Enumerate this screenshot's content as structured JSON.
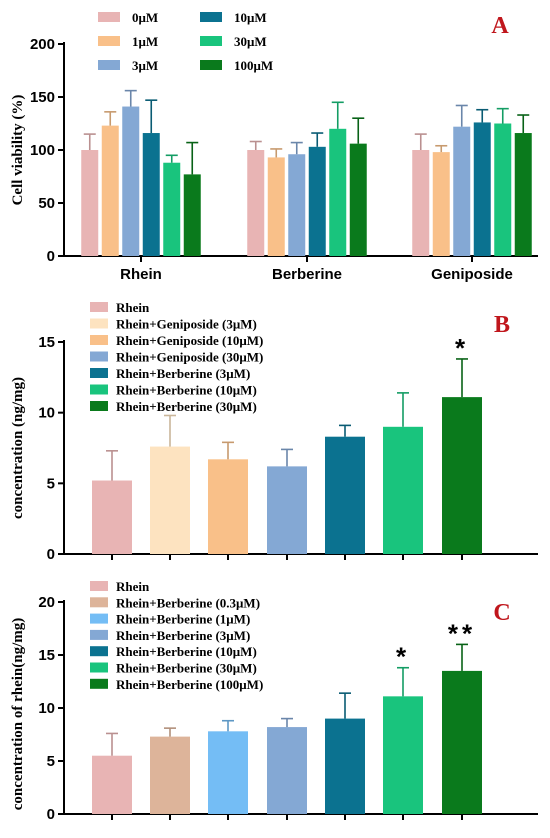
{
  "chart_data": [
    {
      "type": "bar",
      "panel_label": "A",
      "ylabel": "Cell viability (%)",
      "ylim": [
        0,
        200
      ],
      "yticks": [
        0,
        50,
        100,
        150,
        200
      ],
      "categories": [
        "Rhein",
        "Berberine",
        "Geniposide"
      ],
      "legend_position": "top-left",
      "series": [
        {
          "name": "0μM",
          "color": "#e8b4b4",
          "values": [
            100,
            100,
            100
          ],
          "errors": [
            15,
            8,
            15
          ]
        },
        {
          "name": "1μM",
          "color": "#f9c089",
          "values": [
            123,
            93,
            98
          ],
          "errors": [
            13,
            8,
            6
          ]
        },
        {
          "name": "3μM",
          "color": "#84a8d4",
          "values": [
            141,
            96,
            122
          ],
          "errors": [
            15,
            11,
            20
          ]
        },
        {
          "name": "10μM",
          "color": "#0b7290",
          "values": [
            116,
            103,
            126
          ],
          "errors": [
            31,
            13,
            12
          ]
        },
        {
          "name": "30μM",
          "color": "#19c47d",
          "values": [
            88,
            120,
            125
          ],
          "errors": [
            7,
            25,
            14
          ]
        },
        {
          "name": "100μM",
          "color": "#0a7a1c",
          "values": [
            77,
            106,
            116
          ],
          "errors": [
            30,
            24,
            17
          ]
        }
      ],
      "significance": []
    },
    {
      "type": "bar",
      "panel_label": "B",
      "ylabel": "concentration (ng/mg)",
      "ylim": [
        0,
        15
      ],
      "yticks": [
        0,
        5,
        10,
        15
      ],
      "legend_position": "top-left",
      "series": [
        {
          "name": "Rhein",
          "color": "#e8b4b4",
          "values": [
            5.2
          ],
          "errors": [
            2.1
          ]
        },
        {
          "name": "Rhein+Geniposide (3μM)",
          "color": "#fde3c0",
          "values": [
            7.6
          ],
          "errors": [
            2.2
          ]
        },
        {
          "name": "Rhein+Geniposide (10μM)",
          "color": "#f9c089",
          "values": [
            6.7
          ],
          "errors": [
            1.2
          ]
        },
        {
          "name": "Rhein+Geniposide (30μM)",
          "color": "#84a8d4",
          "values": [
            6.2
          ],
          "errors": [
            1.2
          ]
        },
        {
          "name": "Rhein+Berberine (3μM)",
          "color": "#0b7290",
          "values": [
            8.3
          ],
          "errors": [
            0.8
          ]
        },
        {
          "name": "Rhein+Berberine (10μM)",
          "color": "#19c47d",
          "values": [
            9.0
          ],
          "errors": [
            2.4
          ]
        },
        {
          "name": "Rhein+Berberine (30μM)",
          "color": "#0a7a1c",
          "values": [
            11.1
          ],
          "errors": [
            2.7
          ]
        }
      ],
      "significance": [
        "",
        "",
        "",
        "",
        "",
        "",
        "*"
      ]
    },
    {
      "type": "bar",
      "panel_label": "C",
      "ylabel": "concentration of rhein(ng/mg)",
      "ylim": [
        0,
        20
      ],
      "yticks": [
        0,
        5,
        10,
        15,
        20
      ],
      "legend_position": "top-left",
      "series": [
        {
          "name": "Rhein",
          "color": "#e8b4b4",
          "values": [
            5.5
          ],
          "errors": [
            2.1
          ]
        },
        {
          "name": "Rhein+Berberine (0.3μM)",
          "color": "#ddb49a",
          "values": [
            7.3
          ],
          "errors": [
            0.8
          ]
        },
        {
          "name": "Rhein+Berberine (1μM)",
          "color": "#74bdf5",
          "values": [
            7.8
          ],
          "errors": [
            1.0
          ]
        },
        {
          "name": "Rhein+Berberine (3μM)",
          "color": "#84a8d4",
          "values": [
            8.2
          ],
          "errors": [
            0.8
          ]
        },
        {
          "name": "Rhein+Berberine (10μM)",
          "color": "#0b7290",
          "values": [
            9.0
          ],
          "errors": [
            2.4
          ]
        },
        {
          "name": "Rhein+Berberine (30μM)",
          "color": "#19c47d",
          "values": [
            11.1
          ],
          "errors": [
            2.7
          ]
        },
        {
          "name": "Rhein+Berberine (100μM)",
          "color": "#0a7a1c",
          "values": [
            13.5
          ],
          "errors": [
            2.5
          ]
        }
      ],
      "significance": [
        "",
        "",
        "",
        "",
        "",
        "*",
        "**"
      ]
    }
  ]
}
